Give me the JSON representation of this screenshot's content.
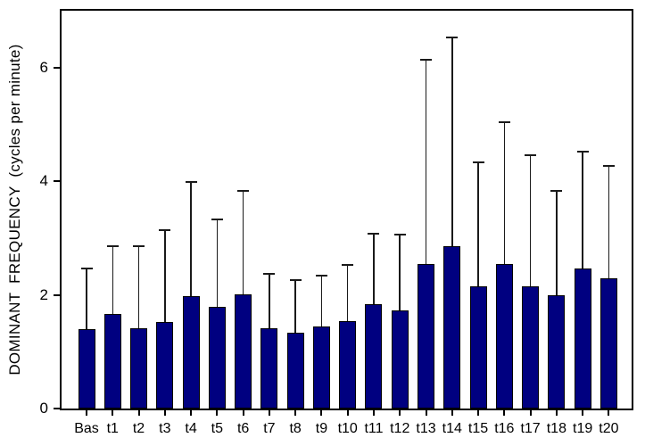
{
  "chart_data": {
    "type": "bar",
    "title": "",
    "ylabel": "DOMINANT  FREQUENCY  (cycles per minute)",
    "xlabel": "",
    "categories": [
      "Bas",
      "t1",
      "t2",
      "t3",
      "t4",
      "t5",
      "t6",
      "t7",
      "t8",
      "t9",
      "t10",
      "t11",
      "t12",
      "t13",
      "t14",
      "t15",
      "t16",
      "t17",
      "t18",
      "t19",
      "t20"
    ],
    "values": [
      1.4,
      1.67,
      1.42,
      1.52,
      1.98,
      1.79,
      2.01,
      1.42,
      1.33,
      1.44,
      1.54,
      1.84,
      1.73,
      2.55,
      2.86,
      2.15,
      2.54,
      2.15,
      2.0,
      2.46,
      2.29
    ],
    "error_upper_top": [
      2.48,
      2.87,
      2.87,
      3.15,
      4.0,
      3.35,
      3.85,
      2.38,
      2.27,
      2.36,
      2.55,
      3.09,
      3.07,
      6.15,
      6.55,
      4.34,
      5.06,
      4.47,
      3.84,
      4.53,
      4.29
    ],
    "ylim": [
      0,
      7
    ],
    "yticks": [
      0,
      2,
      4,
      6
    ],
    "grid": false,
    "legend": "none",
    "colors": {
      "bar_fill": "#000080",
      "bar_border": "#000000",
      "error_bar": "#1a1a1a",
      "axis": "#000000",
      "background": "#ffffff"
    }
  }
}
